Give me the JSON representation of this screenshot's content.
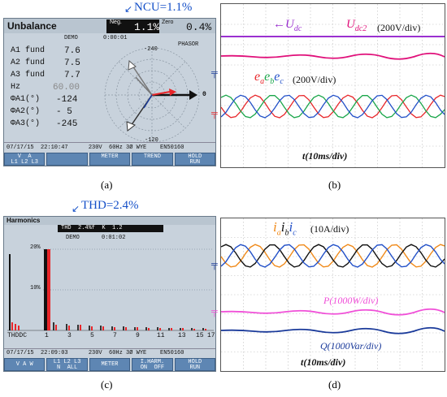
{
  "panel_a": {
    "annotation": "NCU=1.1%",
    "title": "Unbalance",
    "neg_label": "Neg.",
    "neg_value": "1.1%",
    "zero_label": "Zero",
    "zero_value": "0.4%",
    "demo": "DEMO",
    "clock": "0:00:01",
    "mode": "PHASOR",
    "rows": [
      {
        "label": "A1 fund",
        "value": "7.6"
      },
      {
        "label": "A2 fund",
        "value": "7.5"
      },
      {
        "label": "A3 fund",
        "value": "7.7"
      },
      {
        "label": "Hz",
        "value": "60.00"
      },
      {
        "label": "ΦA1(°)",
        "value": "-124"
      },
      {
        "label": "ΦA2(°)",
        "value": "- 5"
      },
      {
        "label": "ΦA3(°)",
        "value": "-245"
      }
    ],
    "phasor_top": "-240",
    "phasor_right": "0",
    "phasor_bottom": "-120",
    "status": "07/17/15  22:10:47      230V  60Hz 3Ø WYE    EN50160",
    "buttons": [
      "V  A\nL1 L2 L3",
      "",
      "METER",
      "TREND",
      "HOLD\nRUN"
    ],
    "caption": "(a)"
  },
  "panel_b": {
    "udc": "U",
    "udc_sub": "dc",
    "udc2": "U",
    "udc2_sub": "dc2",
    "udc_scale": "(200V/div)",
    "e_labels": [
      "e",
      "e",
      "e"
    ],
    "e_subs": [
      "a",
      "b",
      "c"
    ],
    "e_scale": "(200V/div)",
    "time": "t(10ms/div)",
    "caption": "(b)"
  },
  "panel_c": {
    "annotation": "THD=2.4%",
    "title": "Harmonics",
    "thd_bar": "THD  2.4%f  K  1.2",
    "demo": "DEMO",
    "clock": "0:01:02",
    "y_top": "20%",
    "y_mid": "10%",
    "x_labels": [
      "THDDC",
      "1",
      "3",
      "5",
      "7",
      "9",
      "11",
      "13",
      "15",
      "17"
    ],
    "status": "07/17/15  22:09:03      230V  60Hz 3Ø WYE    EN50160",
    "buttons": [
      "V A W",
      "L1 L2 L3\nN  ALL",
      "METER",
      "I.HARM.\nON  OFF",
      "HOLD\nRUN"
    ],
    "caption": "(c)"
  },
  "panel_d": {
    "i_labels": [
      "i",
      "i",
      "i"
    ],
    "i_subs": [
      "a",
      "b",
      "c"
    ],
    "i_scale": "(10A/div)",
    "p_label": "P(1000W/div)",
    "q_label": "Q(1000Var/div)",
    "time": "t(10ms/div)",
    "caption": "(d)"
  },
  "colors": {
    "purple": "#9b30d0",
    "magenta": "#e0107a",
    "red": "#e8262a",
    "green": "#1aa64a",
    "blue": "#2250c8",
    "orange": "#f08a1a",
    "pink": "#f050d8",
    "navy": "#1a3a9a",
    "annotation_blue": "#1550c8"
  }
}
